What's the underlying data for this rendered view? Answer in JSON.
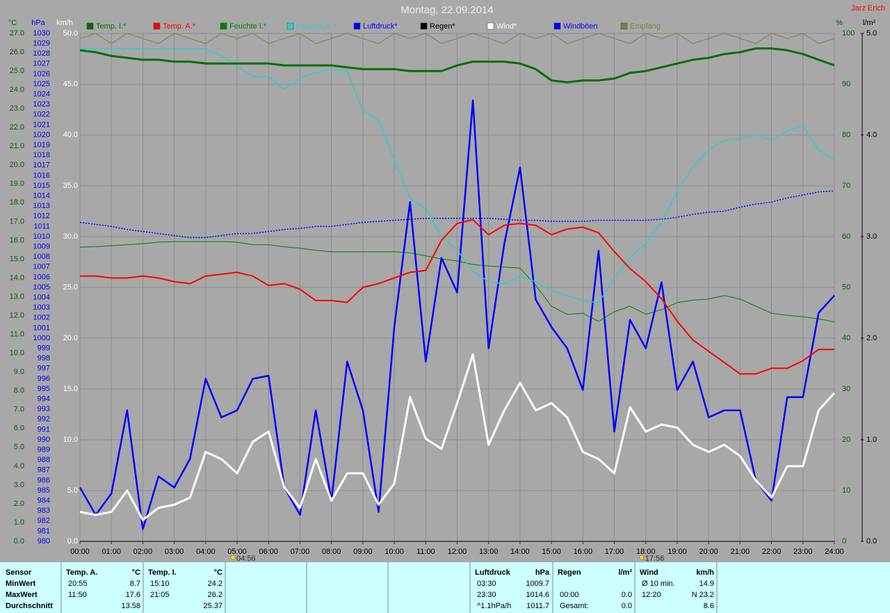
{
  "chart_data": {
    "type": "line",
    "title": "Montag, 22.09.2014",
    "author": "Jarz Erich",
    "sunrise": "04:56",
    "sunset": "17:56",
    "xlim": [
      0,
      24
    ],
    "xticks": [
      {
        "value": 0,
        "label": "00:00"
      },
      {
        "value": 1,
        "label": "01:00"
      },
      {
        "value": 2,
        "label": "02:00"
      },
      {
        "value": 3,
        "label": "03:00"
      },
      {
        "value": 4,
        "label": "04:00"
      },
      {
        "value": 5,
        "label": "05:00"
      },
      {
        "value": 6,
        "label": "06:00"
      },
      {
        "value": 7,
        "label": "07:00"
      },
      {
        "value": 8,
        "label": "08:00"
      },
      {
        "value": 9,
        "label": "09:00"
      },
      {
        "value": 10,
        "label": "10:00"
      },
      {
        "value": 11,
        "label": "11:00"
      },
      {
        "value": 12,
        "label": "12:00"
      },
      {
        "value": 13,
        "label": "13:00"
      },
      {
        "value": 14,
        "label": "14:00"
      },
      {
        "value": 15,
        "label": "15:00"
      },
      {
        "value": 16,
        "label": "16:00"
      },
      {
        "value": 17,
        "label": "17:00"
      },
      {
        "value": 18,
        "label": "18:00"
      },
      {
        "value": 19,
        "label": "19:00"
      },
      {
        "value": 20,
        "label": "20:00"
      },
      {
        "value": 21,
        "label": "21:00"
      },
      {
        "value": 22,
        "label": "22:00"
      },
      {
        "value": 23,
        "label": "23:00"
      },
      {
        "value": 24,
        "label": "24:00"
      }
    ],
    "grid": true,
    "axes": [
      {
        "unit": "°C",
        "color": "#006000",
        "lim": [
          0,
          27
        ],
        "ticks": [
          {
            "value": 0,
            "label": "0.0"
          },
          {
            "value": 1,
            "label": "1.0"
          },
          {
            "value": 2,
            "label": "2.0"
          },
          {
            "value": 3,
            "label": "3.0"
          },
          {
            "value": 4,
            "label": "4.0"
          },
          {
            "value": 5,
            "label": "5.0"
          },
          {
            "value": 6,
            "label": "6.0"
          },
          {
            "value": 7,
            "label": "7.0"
          },
          {
            "value": 8,
            "label": "8.0"
          },
          {
            "value": 9,
            "label": "9.0"
          },
          {
            "value": 10,
            "label": "10.0"
          },
          {
            "value": 11,
            "label": "11.0"
          },
          {
            "value": 12,
            "label": "12.0"
          },
          {
            "value": 13,
            "label": "13.0"
          },
          {
            "value": 14,
            "label": "14.0"
          },
          {
            "value": 15,
            "label": "15.0"
          },
          {
            "value": 16,
            "label": "16.0"
          },
          {
            "value": 17,
            "label": "17.0"
          },
          {
            "value": 18,
            "label": "18.0"
          },
          {
            "value": 19,
            "label": "19.0"
          },
          {
            "value": 20,
            "label": "20.0"
          },
          {
            "value": 21,
            "label": "21.0"
          },
          {
            "value": 22,
            "label": "22.0"
          },
          {
            "value": 23,
            "label": "23.0"
          },
          {
            "value": 24,
            "label": "24.0"
          },
          {
            "value": 25,
            "label": "25.0"
          },
          {
            "value": 26,
            "label": "26.0"
          },
          {
            "value": 27,
            "label": "27.0"
          }
        ]
      },
      {
        "unit": "hPa",
        "color": "#0000ff",
        "lim": [
          980,
          1030
        ],
        "ticks": [
          980,
          981,
          982,
          983,
          984,
          985,
          986,
          987,
          988,
          989,
          990,
          991,
          992,
          993,
          994,
          995,
          996,
          997,
          998,
          999,
          1000,
          1001,
          1002,
          1003,
          1004,
          1005,
          1006,
          1007,
          1008,
          1009,
          1010,
          1011,
          1012,
          1013,
          1014,
          1015,
          1016,
          1017,
          1018,
          1019,
          1020,
          1021,
          1022,
          1023,
          1024,
          1025,
          1026,
          1027,
          1028,
          1029,
          1030
        ]
      },
      {
        "unit": "km/h",
        "color": "#ffffff",
        "lim": [
          0,
          50
        ],
        "ticks": [
          {
            "value": 0,
            "label": "0.0"
          },
          {
            "value": 5,
            "label": "5.0"
          },
          {
            "value": 10,
            "label": "10.0"
          },
          {
            "value": 15,
            "label": "15.0"
          },
          {
            "value": 20,
            "label": "20.0"
          },
          {
            "value": 25,
            "label": "25.0"
          },
          {
            "value": 30,
            "label": "30.0"
          },
          {
            "value": 35,
            "label": "35.0"
          },
          {
            "value": 40,
            "label": "40.0"
          },
          {
            "value": 45,
            "label": "45.0"
          },
          {
            "value": 50,
            "label": "50.0"
          }
        ]
      },
      {
        "unit": "%",
        "color": "#006000",
        "lim": [
          0,
          100
        ],
        "ticks": [
          0,
          10,
          20,
          30,
          40,
          50,
          60,
          70,
          80,
          90,
          100
        ]
      },
      {
        "unit": "l/m²",
        "color": "#000000",
        "lim": [
          0,
          5
        ],
        "ticks": [
          {
            "value": 0,
            "label": "0.0"
          },
          {
            "value": 1,
            "label": "1.0"
          },
          {
            "value": 2,
            "label": "2.0"
          },
          {
            "value": 3,
            "label": "3.0"
          },
          {
            "value": 4,
            "label": "4.0"
          },
          {
            "value": 5,
            "label": "5.0"
          }
        ]
      }
    ],
    "x": [
      0,
      0.5,
      1,
      1.5,
      2,
      2.5,
      3,
      3.5,
      4,
      4.5,
      5,
      5.5,
      6,
      6.5,
      7,
      7.5,
      8,
      8.5,
      9,
      9.5,
      10,
      10.5,
      11,
      11.5,
      12,
      12.5,
      13,
      13.5,
      14,
      14.5,
      15,
      15.5,
      16,
      16.5,
      17,
      17.5,
      18,
      18.5,
      19,
      19.5,
      20,
      20.5,
      21,
      21.5,
      22,
      22.5,
      23,
      23.5,
      24
    ],
    "series": [
      {
        "name": "Temp. I.*",
        "color": "#007000",
        "axis": 0,
        "values": [
          26.1,
          26.0,
          25.8,
          25.7,
          25.6,
          25.6,
          25.5,
          25.5,
          25.4,
          25.4,
          25.4,
          25.4,
          25.4,
          25.3,
          25.3,
          25.3,
          25.3,
          25.2,
          25.1,
          25.1,
          25.1,
          25.0,
          25.0,
          25.0,
          25.3,
          25.5,
          25.5,
          25.5,
          25.4,
          25.1,
          24.5,
          24.4,
          24.5,
          24.5,
          24.6,
          24.9,
          25.0,
          25.2,
          25.4,
          25.6,
          25.7,
          25.9,
          26.0,
          26.2,
          26.2,
          26.1,
          25.9,
          25.6,
          25.3
        ]
      },
      {
        "name": "Temp. A.*",
        "color": "#ff0000",
        "axis": 0,
        "values": [
          14.1,
          14.1,
          14.0,
          14.0,
          14.1,
          14.0,
          13.8,
          13.7,
          14.1,
          14.2,
          14.3,
          14.1,
          13.6,
          13.7,
          13.4,
          12.8,
          12.8,
          12.7,
          13.5,
          13.7,
          14.0,
          14.3,
          14.4,
          16.0,
          16.9,
          17.1,
          16.3,
          16.8,
          16.9,
          16.8,
          16.3,
          16.6,
          16.7,
          16.4,
          15.4,
          14.5,
          13.8,
          12.9,
          11.7,
          10.7,
          10.1,
          9.5,
          8.9,
          8.9,
          9.2,
          9.2,
          9.6,
          10.2,
          10.2
        ]
      },
      {
        "name": "Feuchte I.*",
        "color": "#008000",
        "axis": 3,
        "values": [
          57.9,
          58.0,
          58.2,
          58.4,
          58.6,
          58.9,
          59.0,
          59.0,
          59.0,
          59.0,
          58.9,
          58.4,
          58.4,
          58.0,
          57.7,
          57.3,
          57.0,
          57.0,
          57.0,
          57.0,
          57.0,
          56.8,
          56.2,
          55.6,
          55.2,
          54.5,
          54.2,
          54.0,
          53.8,
          50.4,
          46.3,
          44.7,
          44.9,
          43.3,
          45.2,
          46.3,
          44.7,
          45.6,
          47.0,
          47.5,
          47.7,
          48.4,
          47.7,
          46.3,
          44.9,
          44.5,
          44.2,
          43.8,
          43.2
        ]
      },
      {
        "name": "Feuchte A.*",
        "color": "#33cccc",
        "axis": 3,
        "values": [
          97.0,
          97.0,
          97.0,
          97.0,
          97.0,
          97.0,
          97.0,
          97.0,
          97.0,
          95.6,
          93.6,
          91.5,
          91.5,
          89.0,
          91.2,
          92.3,
          92.9,
          92.6,
          84.7,
          83.0,
          75.1,
          67.5,
          65.5,
          60.0,
          57.3,
          53.2,
          51.1,
          50.7,
          52.1,
          51.1,
          49.3,
          48.4,
          47.4,
          47.0,
          51.8,
          55.9,
          58.6,
          62.7,
          68.9,
          73.7,
          77.1,
          78.9,
          79.2,
          80.1,
          78.9,
          80.8,
          81.9,
          77.1,
          75.1
        ]
      },
      {
        "name": "Luftdruck*",
        "color": "#0000ff",
        "axis": 1,
        "values": [
          1011.4,
          1011.2,
          1011.0,
          1010.7,
          1010.5,
          1010.3,
          1010.1,
          1009.9,
          1009.9,
          1010.1,
          1010.3,
          1010.3,
          1010.5,
          1010.7,
          1010.8,
          1011.0,
          1011.0,
          1011.2,
          1011.4,
          1011.5,
          1011.6,
          1011.7,
          1011.8,
          1011.8,
          1011.8,
          1011.8,
          1011.8,
          1011.7,
          1011.6,
          1011.6,
          1011.5,
          1011.5,
          1011.5,
          1011.6,
          1011.6,
          1011.6,
          1011.6,
          1011.7,
          1011.9,
          1012.2,
          1012.4,
          1012.5,
          1012.9,
          1013.2,
          1013.4,
          1013.8,
          1014.1,
          1014.4,
          1014.5
        ]
      },
      {
        "name": "Regen*",
        "color": "#000000",
        "axis": 4,
        "values": [
          0,
          0,
          0,
          0,
          0,
          0,
          0,
          0,
          0,
          0,
          0,
          0,
          0,
          0,
          0,
          0,
          0,
          0,
          0,
          0,
          0,
          0,
          0,
          0,
          0,
          0,
          0,
          0,
          0,
          0,
          0,
          0,
          0,
          0,
          0,
          0,
          0,
          0,
          0,
          0,
          0,
          0,
          0,
          0,
          0,
          0,
          0,
          0,
          0
        ]
      },
      {
        "name": "Wind*",
        "color": "#ffffff",
        "axis": 2,
        "values": [
          2.9,
          2.6,
          2.9,
          5.0,
          2.1,
          3.3,
          3.6,
          4.3,
          8.8,
          8.1,
          6.7,
          9.8,
          10.8,
          5.3,
          3.3,
          8.1,
          4.0,
          6.7,
          6.7,
          3.6,
          5.7,
          14.2,
          10.1,
          9.1,
          13.6,
          18.4,
          9.5,
          12.9,
          15.6,
          12.9,
          13.6,
          12.2,
          8.8,
          8.1,
          6.7,
          13.2,
          10.8,
          11.5,
          11.2,
          9.5,
          8.8,
          9.5,
          8.4,
          6.0,
          4.3,
          7.4,
          7.4,
          12.9,
          14.6
        ]
      },
      {
        "name": "Windböen",
        "color": "#0000ff",
        "axis": 2,
        "values": [
          5.3,
          2.6,
          4.7,
          12.9,
          1.2,
          6.4,
          5.3,
          8.1,
          16.0,
          12.2,
          12.9,
          16.0,
          16.3,
          5.3,
          2.6,
          12.9,
          4.0,
          17.7,
          12.9,
          2.9,
          21.1,
          33.4,
          17.7,
          27.9,
          24.5,
          43.4,
          19.0,
          29.3,
          36.8,
          23.8,
          21.1,
          19.0,
          14.9,
          28.6,
          10.8,
          21.8,
          19.0,
          25.5,
          14.9,
          17.7,
          12.2,
          12.9,
          12.9,
          6.0,
          4.0,
          14.2,
          14.2,
          22.5,
          24.2
        ]
      },
      {
        "name": "Empfang",
        "color": "#808040",
        "axis": 3,
        "values": [
          99,
          100,
          98,
          100,
          99,
          98,
          100,
          99,
          98,
          100,
          99,
          100,
          98,
          99,
          100,
          98,
          99,
          100,
          99,
          98,
          100,
          99,
          100,
          98,
          99,
          100,
          99,
          98,
          100,
          99,
          100,
          98,
          99,
          100,
          99,
          98,
          100,
          99,
          100,
          98,
          99,
          100,
          99,
          98,
          100,
          99,
          100,
          98,
          99
        ]
      }
    ]
  },
  "summary": {
    "row_labels": [
      "Sensor",
      "MinWert",
      "MaxWert",
      "Durchschnitt"
    ],
    "groups": [
      {
        "header": [
          "Temp. A.",
          "°C"
        ],
        "rows": [
          [
            "20:55",
            "8.7"
          ],
          [
            "11:50",
            "17.6"
          ],
          [
            null,
            "13.58"
          ]
        ]
      },
      {
        "header": [
          "Temp. I.",
          "°C"
        ],
        "rows": [
          [
            "15:10",
            "24.2"
          ],
          [
            "21:05",
            "26.2"
          ],
          [
            null,
            "25.37"
          ]
        ]
      },
      {
        "header": [
          "Luftdruck",
          "hPa"
        ],
        "rows": [
          [
            "03:30",
            "1009.7"
          ],
          [
            "23:30",
            "1014.6"
          ],
          [
            "^1.1hPa/h",
            "1011.7"
          ]
        ]
      },
      {
        "header": [
          "Regen",
          "l/m²"
        ],
        "rows": [
          [
            null,
            null
          ],
          [
            "00:00",
            "0.0"
          ],
          [
            "Gesamt:",
            "0.0"
          ]
        ]
      },
      {
        "header": [
          "Wind",
          "km/h"
        ],
        "rows": [
          [
            "Ø 10 min.",
            "14.9"
          ],
          [
            "12:20",
            "N 23.2"
          ],
          [
            null,
            "8.6"
          ]
        ]
      }
    ]
  }
}
